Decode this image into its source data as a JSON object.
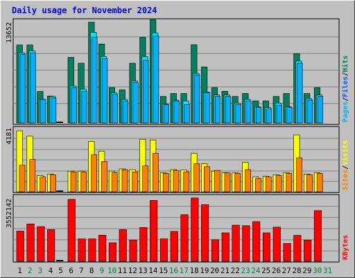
{
  "chart_data": {
    "type": "bar",
    "title": "Daily usage for November 2024",
    "categories": [
      "1",
      "2",
      "3",
      "4",
      "5",
      "6",
      "7",
      "8",
      "9",
      "10",
      "11",
      "12",
      "13",
      "14",
      "15",
      "16",
      "17",
      "18",
      "19",
      "20",
      "21",
      "22",
      "23",
      "24",
      "25",
      "26",
      "27",
      "28",
      "29",
      "30",
      "31"
    ],
    "weekend_days": [
      "2",
      "3",
      "9",
      "10",
      "16",
      "17",
      "23",
      "24",
      "30",
      "31"
    ],
    "colors": {
      "weekday": "#000000",
      "weekend": "#008040",
      "hits": "#00805c",
      "files": "#00e0ff",
      "pages": "#00b0ff",
      "visits": "#ffff00",
      "sites": "#ff8000",
      "kbytes": "#ff0000"
    },
    "panels": [
      {
        "name": "usage",
        "ymax_label": "13652",
        "ymax": 13652,
        "legend": [
          {
            "label": "Pages",
            "color": "#00b0ff"
          },
          {
            "label": "/",
            "color": "#000000"
          },
          {
            "label": "Files",
            "color": "#0060ff"
          },
          {
            "label": "/",
            "color": "#000000"
          },
          {
            "label": "Hits",
            "color": "#00805c"
          }
        ],
        "series": [
          {
            "name": "Hits",
            "values": [
              10576,
              10576,
              4275,
              3657,
              0,
              8900,
              8100,
              13652,
              10700,
              4800,
              4500,
              8100,
              11600,
              14000,
              3600,
              4000,
              4000,
              10600,
              7600,
              4800,
              4300,
              3600,
              4000,
              3000,
              3000,
              3600,
              4000,
              9400,
              4000,
              4800,
              null
            ]
          },
          {
            "name": "Files",
            "values": [
              9500,
              9800,
              3200,
              3600,
              0,
              5000,
              4600,
              12300,
              9000,
              4100,
              3200,
              5700,
              9000,
              12200,
              2600,
              3100,
              3000,
              6700,
              4200,
              3800,
              3800,
              2700,
              3200,
              2200,
              2100,
              2700,
              2200,
              8400,
              3300,
              3800,
              null
            ]
          },
          {
            "name": "Pages",
            "values": [
              9300,
              9500,
              3200,
              3400,
              0,
              4800,
              4300,
              11600,
              8700,
              3900,
              3000,
              5500,
              8500,
              11800,
              2500,
              3000,
              2500,
              6500,
              4100,
              3600,
              3600,
              2500,
              3000,
              2100,
              1900,
              2400,
              2100,
              8100,
              3100,
              3600,
              null
            ]
          }
        ]
      },
      {
        "name": "visitors",
        "ymax_label": "4181",
        "ymax": 4181,
        "legend": [
          {
            "label": "Sites",
            "color": "#ff8000"
          },
          {
            "label": "/",
            "color": "#000000"
          },
          {
            "label": "Visits",
            "color": "#ffff00"
          }
        ],
        "series": [
          {
            "name": "Visits",
            "values": [
              4125,
              3760,
              1115,
              1200,
              0,
              1400,
              1400,
              3400,
              2750,
              1400,
              1550,
              1500,
              3550,
              3500,
              1300,
              1500,
              1480,
              2600,
              1900,
              1400,
              1300,
              1280,
              2000,
              1000,
              1050,
              1150,
              1300,
              3850,
              1200,
              1300,
              null
            ]
          },
          {
            "name": "Sites",
            "values": [
              1800,
              2200,
              1000,
              1150,
              0,
              1350,
              1340,
              2500,
              2050,
              1300,
              1500,
              1350,
              1750,
              2600,
              1250,
              1450,
              1350,
              1900,
              1700,
              1450,
              1280,
              1250,
              1500,
              900,
              1000,
              1100,
              1250,
              2300,
              1150,
              1250,
              null
            ]
          }
        ]
      },
      {
        "name": "traffic",
        "ymax_label": "3552142",
        "ymax": 3552142,
        "legend": [
          {
            "label": "KBytes",
            "color": "#ff0000"
          }
        ],
        "series": [
          {
            "name": "KBytes",
            "values": [
              1700000,
              2100000,
              1950000,
              1780000,
              0,
              3480000,
              1260000,
              1260000,
              1470000,
              1040000,
              1780000,
              1200000,
              1900000,
              3420000,
              1260000,
              1680000,
              2620000,
              3560000,
              3180000,
              1220000,
              1600000,
              2030000,
              2000000,
              2230000,
              1600000,
              1920000,
              1000000,
              1460000,
              1200000,
              2850000,
              null
            ]
          }
        ]
      }
    ]
  }
}
